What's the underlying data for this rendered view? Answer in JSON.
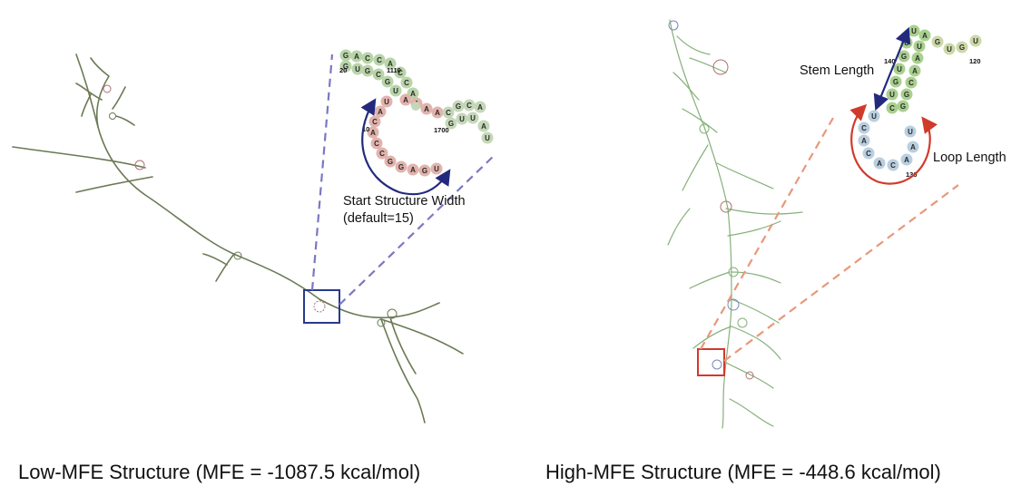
{
  "left_panel": {
    "caption": "Low-MFE Structure (MFE = -1087.5 kcal/mol)",
    "annotation_line1": "Start Structure Width",
    "annotation_line2": "(default=15)",
    "inset_numbers": [
      "20",
      "1110",
      "10",
      "1700"
    ],
    "inset_bases_green": [
      "G",
      "A",
      "C",
      "C",
      "A",
      "G",
      "U",
      "G",
      "C",
      "G",
      "C",
      "U",
      "U",
      "A"
    ],
    "inset_bases_red": [
      "U",
      "A",
      "C",
      "C",
      "G",
      "G",
      "A",
      "G",
      "U",
      "A",
      "A",
      "C",
      "A",
      "A",
      "G",
      "U",
      "A"
    ],
    "inset_bases_tail": [
      "C",
      "G",
      "U",
      "U",
      "A",
      "A",
      "A",
      "C",
      "G",
      "A",
      "C",
      "U",
      "U"
    ],
    "colors": {
      "box": "#283a8c",
      "zoom_lines": "#7a78c4",
      "arrow": "#232a7e"
    }
  },
  "right_panel": {
    "caption": "High-MFE Structure (MFE = -448.6 kcal/mol)",
    "stem_label": "Stem Length",
    "loop_label": "Loop Length",
    "inset_numbers": [
      "140",
      "120",
      "130"
    ],
    "inset_bases_stem": [
      "G",
      "A",
      "U",
      "C",
      "U",
      "G",
      "A",
      "U",
      "U",
      "C",
      "A",
      "G",
      "U",
      "A",
      "U",
      "G",
      "U",
      "A"
    ],
    "inset_bases_loop": [
      "U",
      "C",
      "A",
      "C",
      "A",
      "C",
      "A",
      "A",
      "U"
    ],
    "colors": {
      "box": "#d13a2a",
      "zoom_lines": "#e8987a",
      "stem_arrow": "#232a7e",
      "loop_arrow": "#d13a2a"
    }
  }
}
